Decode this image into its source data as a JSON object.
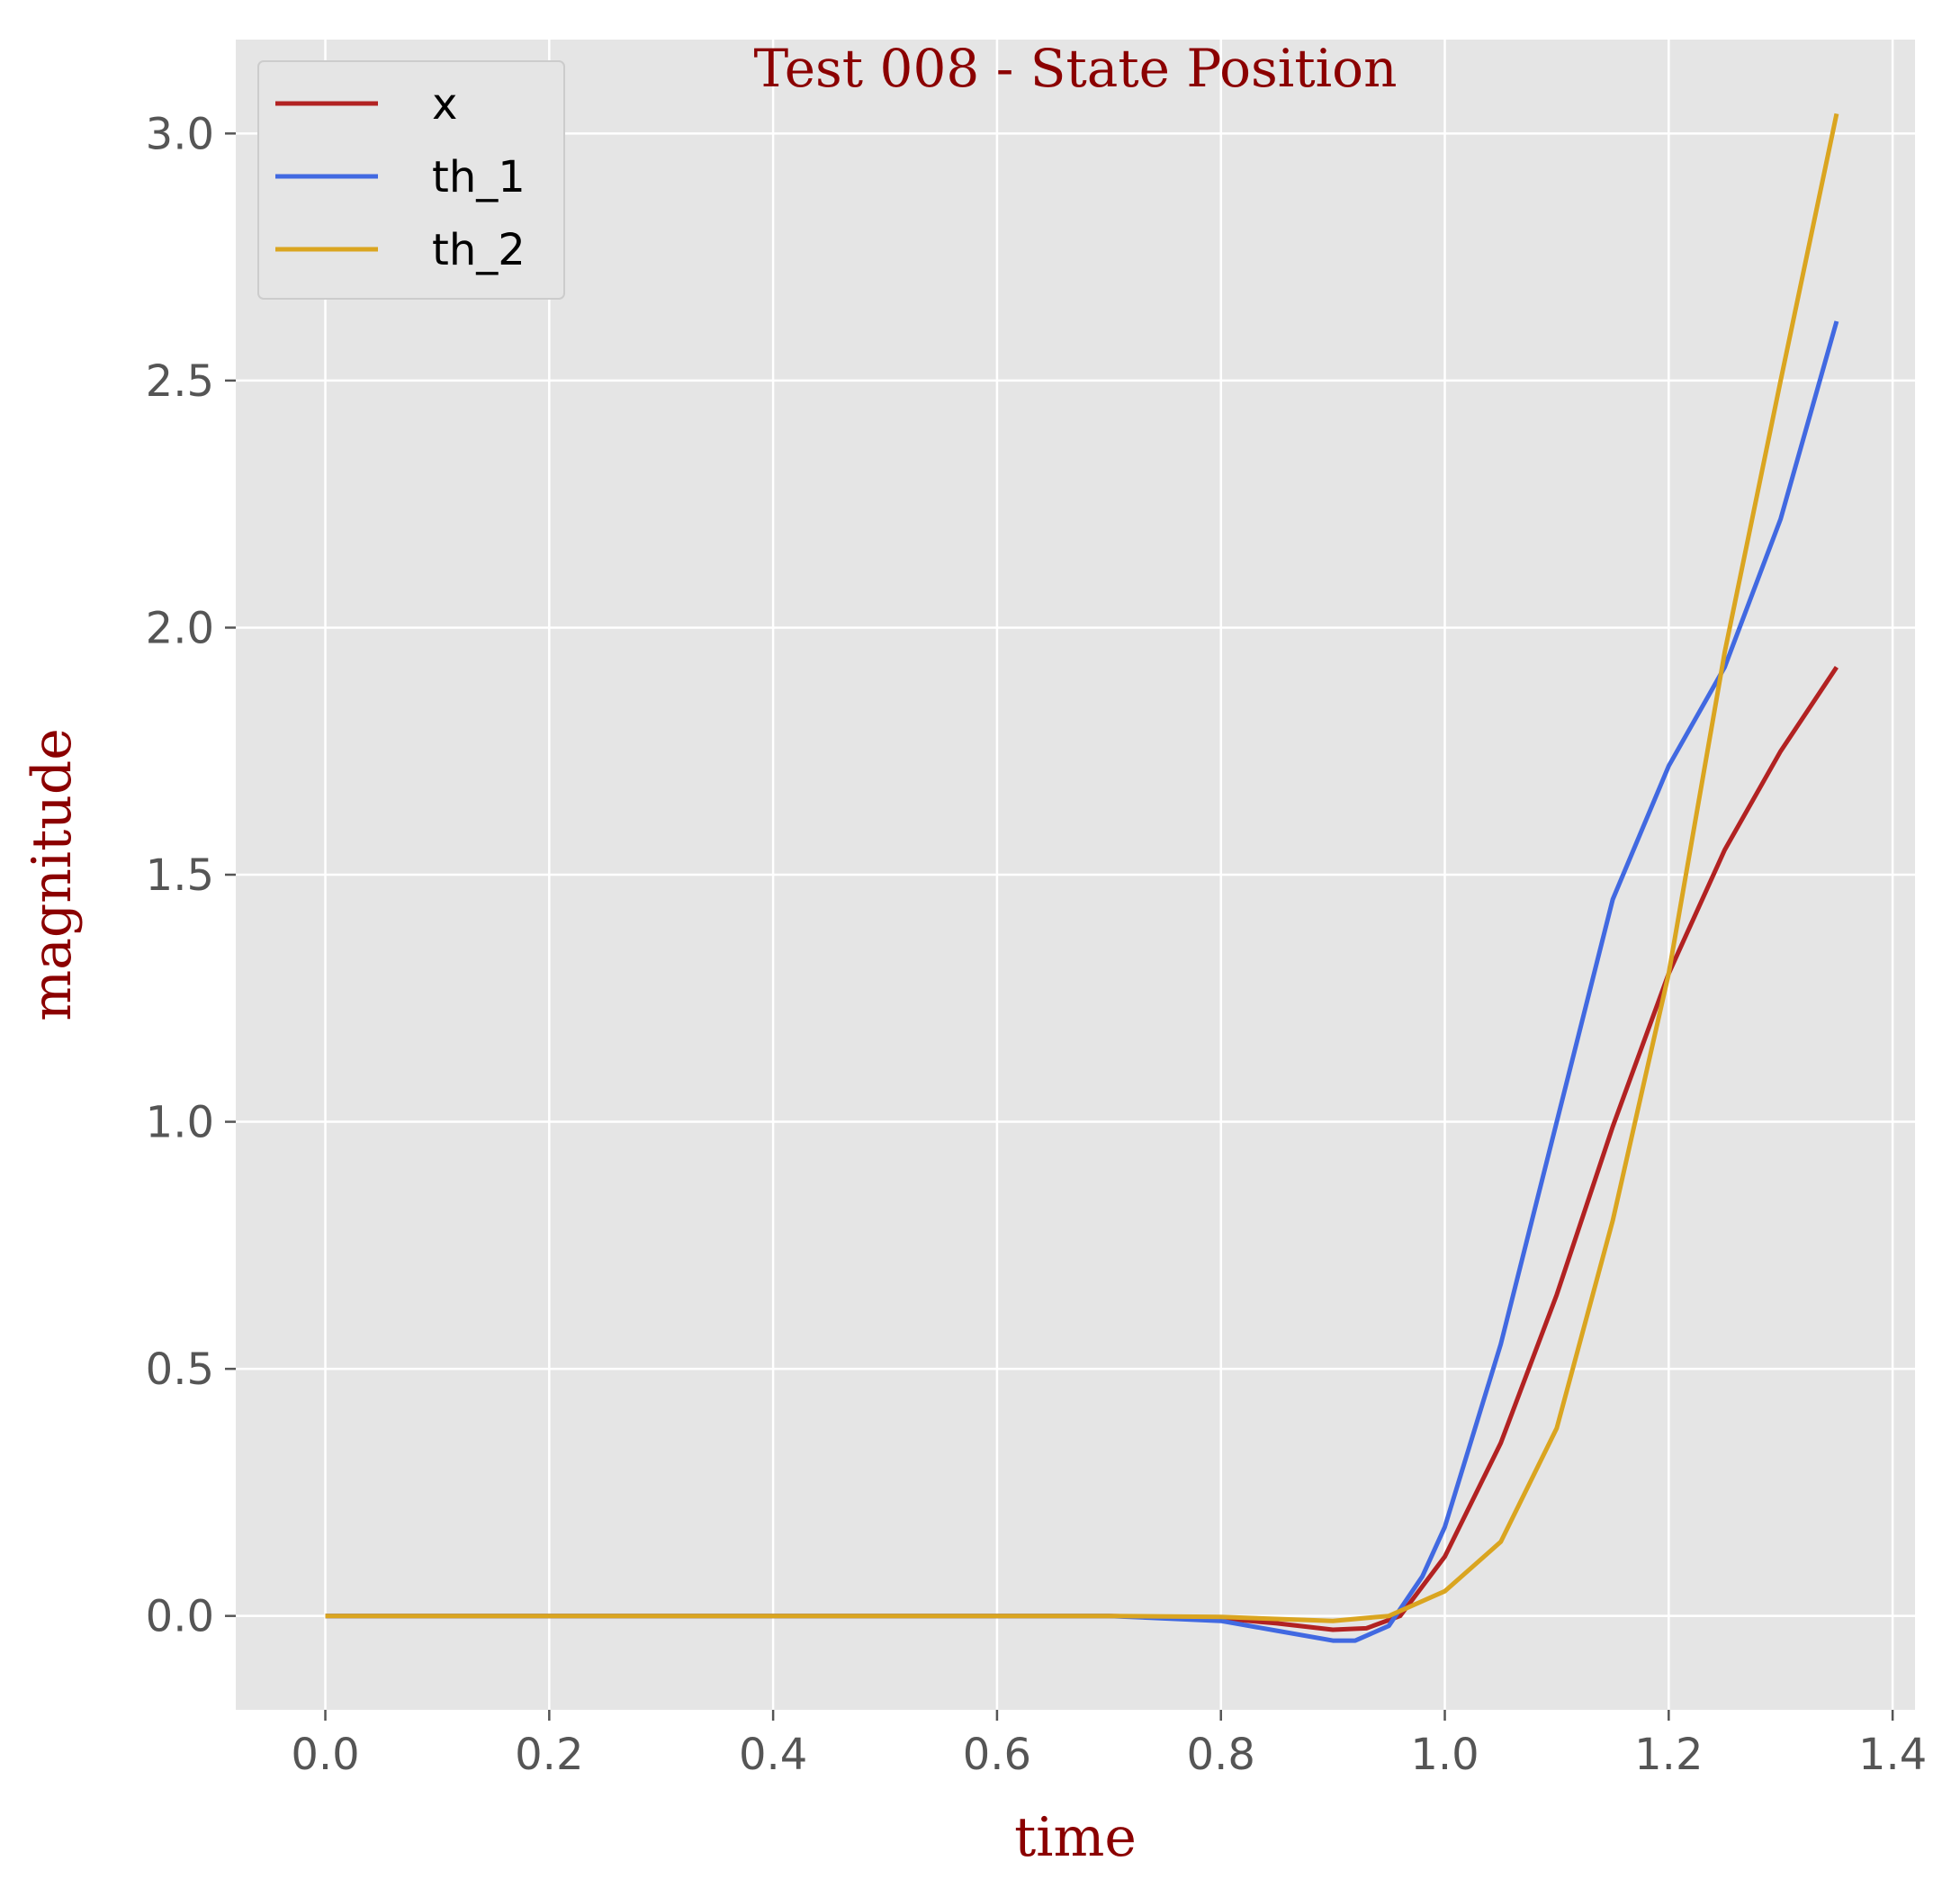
{
  "chart_data": {
    "type": "line",
    "title": "Test 008 - State Position",
    "xlabel": "time",
    "ylabel": "magnitude",
    "xlim": [
      -0.08,
      1.42
    ],
    "ylim": [
      -0.19,
      3.19
    ],
    "x_ticks": [
      "0.0",
      "0.2",
      "0.4",
      "0.6",
      "0.8",
      "1.0",
      "1.2",
      "1.4"
    ],
    "y_ticks": [
      "0.0",
      "0.5",
      "1.0",
      "1.5",
      "2.0",
      "2.5",
      "3.0"
    ],
    "grid": true,
    "legend_position": "top-left",
    "background": "#e5e5e5",
    "series": [
      {
        "name": "x",
        "color": "#b22222",
        "x": [
          0.0,
          0.7,
          0.8,
          0.85,
          0.9,
          0.93,
          0.96,
          1.0,
          1.05,
          1.1,
          1.15,
          1.2,
          1.25,
          1.3,
          1.35
        ],
        "y": [
          0.0,
          0.0,
          -0.005,
          -0.015,
          -0.028,
          -0.025,
          0.0,
          0.12,
          0.35,
          0.65,
          0.99,
          1.3,
          1.55,
          1.75,
          1.92
        ]
      },
      {
        "name": "th_1",
        "color": "#4169e1",
        "x": [
          0.0,
          0.7,
          0.8,
          0.85,
          0.9,
          0.92,
          0.95,
          0.98,
          1.0,
          1.05,
          1.1,
          1.15,
          1.2,
          1.25,
          1.3,
          1.35
        ],
        "y": [
          0.0,
          0.0,
          -0.01,
          -0.03,
          -0.05,
          -0.05,
          -0.02,
          0.08,
          0.18,
          0.55,
          1.0,
          1.45,
          1.72,
          1.92,
          2.22,
          2.62
        ]
      },
      {
        "name": "th_2",
        "color": "#daa520",
        "x": [
          0.0,
          0.7,
          0.8,
          0.9,
          0.95,
          1.0,
          1.05,
          1.1,
          1.15,
          1.2,
          1.25,
          1.3,
          1.35
        ],
        "y": [
          0.0,
          0.0,
          -0.002,
          -0.01,
          0.0,
          0.05,
          0.15,
          0.38,
          0.8,
          1.3,
          1.95,
          2.5,
          3.04
        ]
      }
    ]
  }
}
